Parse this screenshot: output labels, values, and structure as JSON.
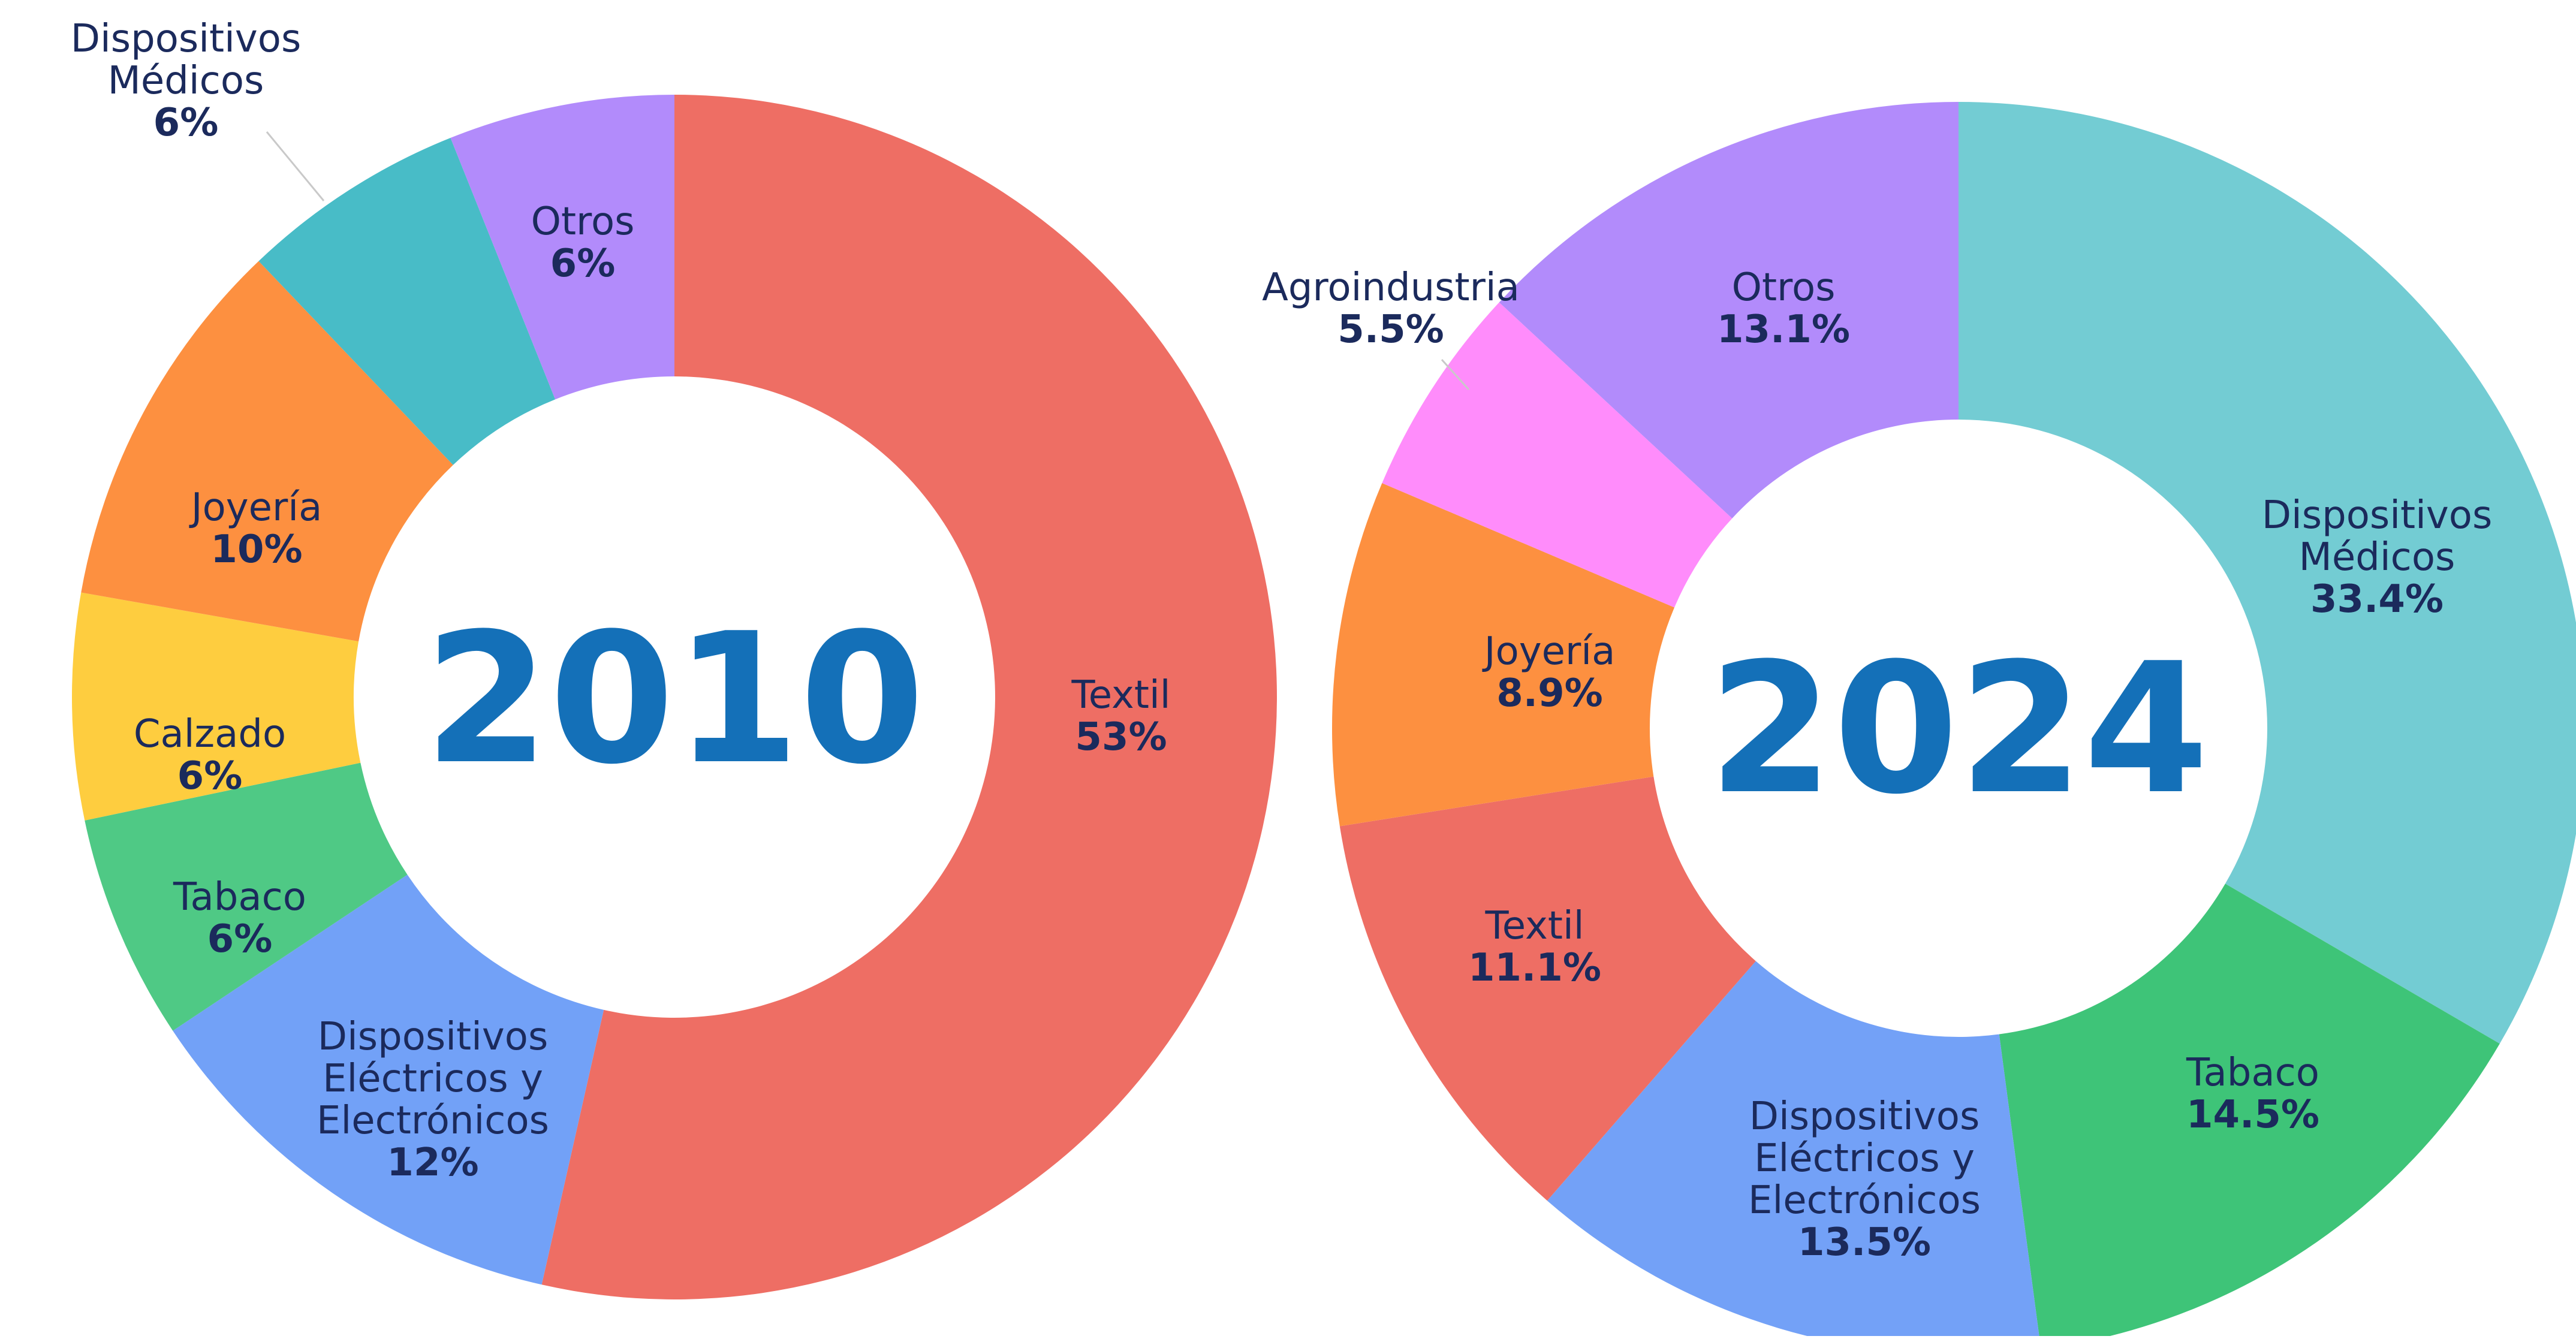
{
  "chart_data": [
    {
      "type": "pie",
      "donut": true,
      "center_label": "2010",
      "slices": [
        {
          "label": [
            "Textil"
          ],
          "value": 53,
          "display": "53%",
          "color": "#ee6e64"
        },
        {
          "label": [
            "Dispositivos",
            "Eléctricos y",
            "Electrónicos"
          ],
          "value": 12,
          "display": "12%",
          "color": "#72a1f7"
        },
        {
          "label": [
            "Tabaco"
          ],
          "value": 6,
          "display": "6%",
          "color": "#4fc985"
        },
        {
          "label": [
            "Calzado"
          ],
          "value": 6,
          "display": "6%",
          "color": "#fecd3f"
        },
        {
          "label": [
            "Joyería"
          ],
          "value": 10,
          "display": "10%",
          "color": "#fd9040"
        },
        {
          "label": [
            "Dispositivos",
            "Médicos"
          ],
          "value": 6,
          "display": "6%",
          "color": "#48bcc7"
        },
        {
          "label": [
            "Otros"
          ],
          "value": 6,
          "display": "6%",
          "color": "#b28bfb"
        }
      ]
    },
    {
      "type": "pie",
      "donut": true,
      "center_label": "2024",
      "slices": [
        {
          "label": [
            "Dispositivos",
            "Médicos"
          ],
          "value": 33.4,
          "display": "33.4%",
          "color": "#73ccd3"
        },
        {
          "label": [
            "Tabaco"
          ],
          "value": 14.5,
          "display": "14.5%",
          "color": "#3ec478"
        },
        {
          "label": [
            "Dispositivos",
            "Eléctricos y",
            "Electrónicos"
          ],
          "value": 13.5,
          "display": "13.5%",
          "color": "#73a1f7"
        },
        {
          "label": [
            "Textil"
          ],
          "value": 11.1,
          "display": "11.1%",
          "color": "#ee6e64"
        },
        {
          "label": [
            "Joyería"
          ],
          "value": 8.9,
          "display": "8.9%",
          "color": "#fd9040"
        },
        {
          "label": [
            "Agroindustria"
          ],
          "value": 5.5,
          "display": "5.5%",
          "color": "#ff8cfb"
        },
        {
          "label": [
            "Otros"
          ],
          "value": 13.1,
          "display": "13.1%",
          "color": "#b28bfb"
        }
      ]
    }
  ]
}
